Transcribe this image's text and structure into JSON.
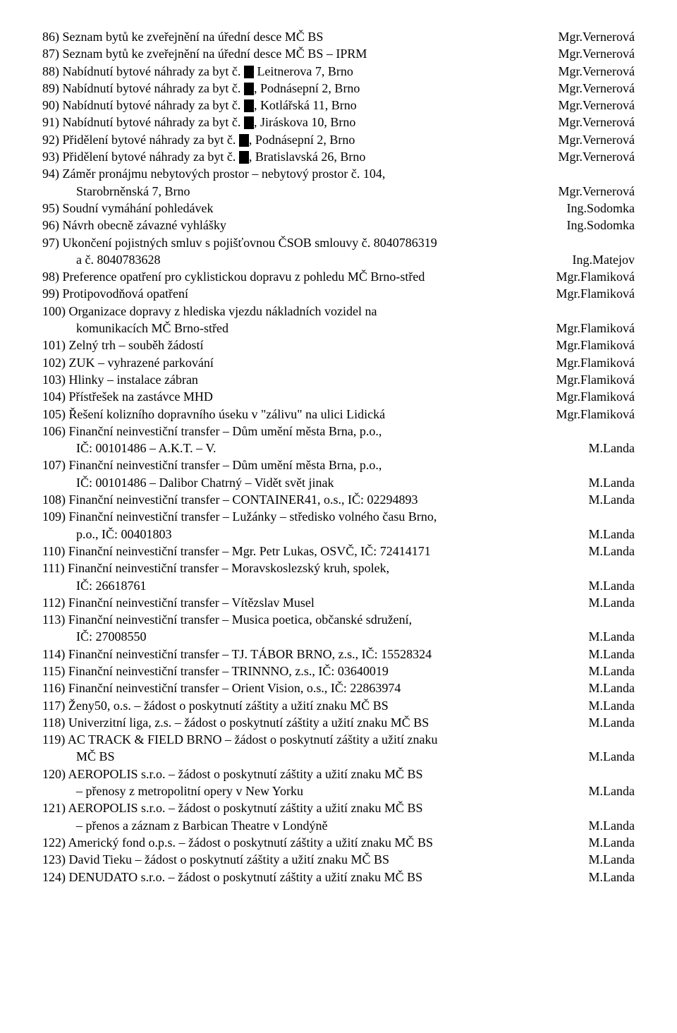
{
  "items": [
    {
      "n": "86)",
      "text": "Seznam bytů ke zveřejnění na úřední desce MČ BS",
      "assignee": "Mgr.Vernerová"
    },
    {
      "n": "87)",
      "text": "Seznam bytů ke zveřejnění na úřední desce MČ BS – IPRM",
      "assignee": "Mgr.Vernerová"
    },
    {
      "n": "88)",
      "text": "Nabídnutí bytové náhrady za byt č. ",
      "redact": true,
      "after": " Leitnerova 7, Brno",
      "assignee": "Mgr.Vernerová"
    },
    {
      "n": "89)",
      "text": "Nabídnutí bytové náhrady za byt č. ",
      "redact": true,
      "after": ", Podnásepní 2, Brno",
      "assignee": "Mgr.Vernerová"
    },
    {
      "n": "90)",
      "text": "Nabídnutí bytové náhrady za byt č. ",
      "redact": true,
      "after": ", Kotlářská 11, Brno",
      "assignee": "Mgr.Vernerová"
    },
    {
      "n": "91)",
      "text": "Nabídnutí bytové náhrady za byt č. ",
      "redact": true,
      "after": ", Jiráskova 10, Brno",
      "assignee": "Mgr.Vernerová"
    },
    {
      "n": "92)",
      "text": "Přidělení bytové náhrady za byt č. ",
      "redact": true,
      "after": ", Podnásepní 2, Brno",
      "assignee": "Mgr.Vernerová"
    },
    {
      "n": "93)",
      "text": "Přidělení bytové náhrady za byt č. ",
      "redact": true,
      "after": ", Bratislavská 26, Brno",
      "assignee": "Mgr.Vernerová"
    },
    {
      "n": "94)",
      "text": "Záměr pronájmu nebytových prostor – nebytový prostor č. 104,",
      "cont": "Starobrněnská 7, Brno",
      "assignee": "Mgr.Vernerová"
    },
    {
      "n": "95)",
      "text": "Soudní vymáhání pohledávek",
      "assignee": "Ing.Sodomka"
    },
    {
      "n": "96)",
      "text": "Návrh obecně závazné vyhlášky",
      "assignee": "Ing.Sodomka"
    },
    {
      "n": "97)",
      "text": "Ukončení pojistných smluv s pojišťovnou ČSOB smlouvy č. 8040786319",
      "cont": "a č. 8040783628",
      "assignee": "Ing.Matejov"
    },
    {
      "n": "98)",
      "text": "Preference opatření pro cyklistickou dopravu z pohledu MČ Brno-střed",
      "assignee": "Mgr.Flamiková"
    },
    {
      "n": "99)",
      "text": "Protipovodňová opatření",
      "assignee": "Mgr.Flamiková"
    },
    {
      "n": "100)",
      "text": "Organizace dopravy z hlediska vjezdu nákladních vozidel na",
      "cont": "komunikacích MČ Brno-střed",
      "assignee": "Mgr.Flamiková"
    },
    {
      "n": "101)",
      "text": "Zelný trh – souběh žádostí",
      "assignee": "Mgr.Flamiková"
    },
    {
      "n": "102)",
      "text": "ZUK – vyhrazené parkování",
      "assignee": "Mgr.Flamiková"
    },
    {
      "n": "103)",
      "text": "Hlinky – instalace zábran",
      "assignee": "Mgr.Flamiková"
    },
    {
      "n": "104)",
      "text": "Přístřešek na zastávce MHD",
      "assignee": "Mgr.Flamiková"
    },
    {
      "n": "105)",
      "text": "Řešení kolizního dopravního úseku v \"zálivu\" na ulici Lidická",
      "assignee": "Mgr.Flamiková"
    },
    {
      "n": "106)",
      "text": "Finanční neinvestiční transfer – Dům umění města Brna, p.o.,",
      "cont": "IČ: 00101486 – A.K.T. – V.",
      "assignee": "M.Landa"
    },
    {
      "n": "107)",
      "text": "Finanční neinvestiční transfer – Dům umění města Brna, p.o.,",
      "cont": "IČ: 00101486 – Dalibor Chatrný – Vidět svět jinak",
      "assignee": "M.Landa"
    },
    {
      "n": "108)",
      "text": "Finanční neinvestiční transfer – CONTAINER41, o.s., IČ: 02294893",
      "assignee": "M.Landa"
    },
    {
      "n": "109)",
      "text": "Finanční neinvestiční transfer – Lužánky – středisko volného času Brno,",
      "cont": "p.o., IČ: 00401803",
      "assignee": "M.Landa"
    },
    {
      "n": "110)",
      "text": "Finanční neinvestiční transfer – Mgr. Petr Lukas, OSVČ, IČ: 72414171",
      "assignee": "M.Landa"
    },
    {
      "n": "111)",
      "text": "Finanční neinvestiční transfer – Moravskoslezský kruh, spolek,",
      "cont": "IČ: 26618761",
      "assignee": "M.Landa"
    },
    {
      "n": "112)",
      "text": "Finanční neinvestiční transfer – Vítězslav Musel",
      "assignee": "M.Landa"
    },
    {
      "n": "113)",
      "text": "Finanční neinvestiční transfer – Musica poetica, občanské sdružení,",
      "cont": "IČ: 27008550",
      "assignee": "M.Landa"
    },
    {
      "n": "114)",
      "text": "Finanční neinvestiční transfer – TJ. TÁBOR BRNO, z.s., IČ: 15528324",
      "assignee": "M.Landa"
    },
    {
      "n": "115)",
      "text": "Finanční neinvestiční transfer – TRINNNO, z.s., IČ: 03640019",
      "assignee": "M.Landa"
    },
    {
      "n": "116)",
      "text": "Finanční neinvestiční transfer – Orient Vision, o.s., IČ: 22863974",
      "assignee": "M.Landa"
    },
    {
      "n": "117)",
      "text": "Ženy50, o.s. – žádost o poskytnutí záštity a užití znaku MČ BS",
      "assignee": "M.Landa"
    },
    {
      "n": "118)",
      "text": "Univerzitní liga, z.s. – žádost o poskytnutí záštity a užití znaku MČ BS",
      "assignee": "M.Landa"
    },
    {
      "n": "119)",
      "text": "AC TRACK & FIELD BRNO – žádost o poskytnutí záštity a užití znaku",
      "cont": "MČ BS",
      "assignee": "M.Landa"
    },
    {
      "n": "120)",
      "text": "AEROPOLIS s.r.o. – žádost o poskytnutí záštity a užití znaku MČ BS",
      "cont": "– přenosy z metropolitní opery v New Yorku",
      "assignee": "M.Landa"
    },
    {
      "n": "121)",
      "text": "AEROPOLIS s.r.o. – žádost o poskytnutí záštity a užití znaku MČ BS",
      "cont": "– přenos a záznam z Barbican Theatre v Londýně",
      "assignee": "M.Landa"
    },
    {
      "n": "122)",
      "text": "Americký fond o.p.s. – žádost o poskytnutí záštity a užití znaku MČ BS",
      "assignee": "M.Landa"
    },
    {
      "n": "123)",
      "text": "David Tieku – žádost o poskytnutí záštity a užití znaku MČ BS",
      "assignee": "M.Landa"
    },
    {
      "n": "124)",
      "text": "DENUDATO s.r.o. – žádost o poskytnutí záštity a užití znaku MČ BS",
      "assignee": "M.Landa"
    }
  ]
}
